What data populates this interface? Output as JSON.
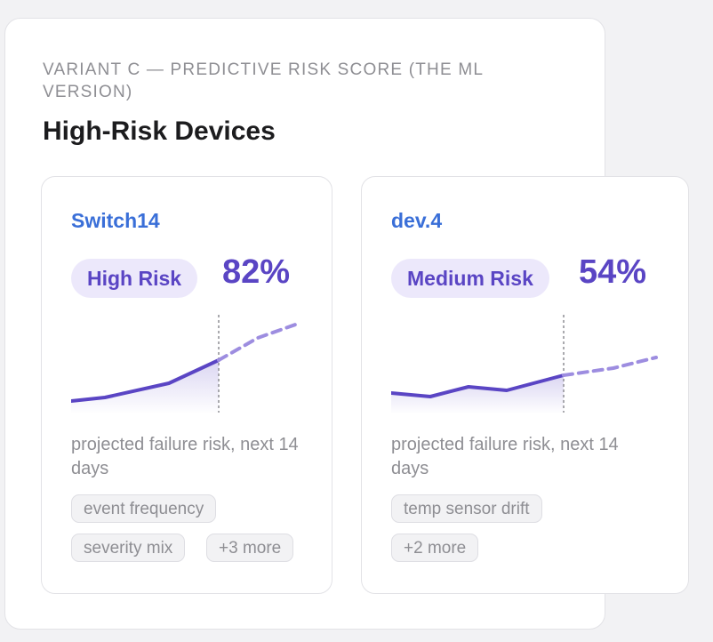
{
  "variant_label": "VARIANT C — PREDICTIVE RISK SCORE (THE ML VERSION)",
  "section_title": "High-Risk Devices",
  "colors": {
    "device_name": "#3a6fd8",
    "accent": "#5a45c4",
    "badge_bg": "#ece8fb",
    "projection": "#9d8de0"
  },
  "devices": [
    {
      "name": "Switch14",
      "risk_label": "High Risk",
      "risk_pct": "82%",
      "risk_fraction": 0.82,
      "description": "projected failure risk, next 14 days",
      "factors": [
        "event frequency",
        "severity mix",
        "+3 more"
      ]
    },
    {
      "name": "dev.4",
      "risk_label": "Medium Risk",
      "risk_pct": "54%",
      "risk_fraction": 0.54,
      "description": "projected failure risk, next 14 days",
      "factors": [
        "temp sensor drift",
        "+2 more"
      ]
    }
  ]
}
